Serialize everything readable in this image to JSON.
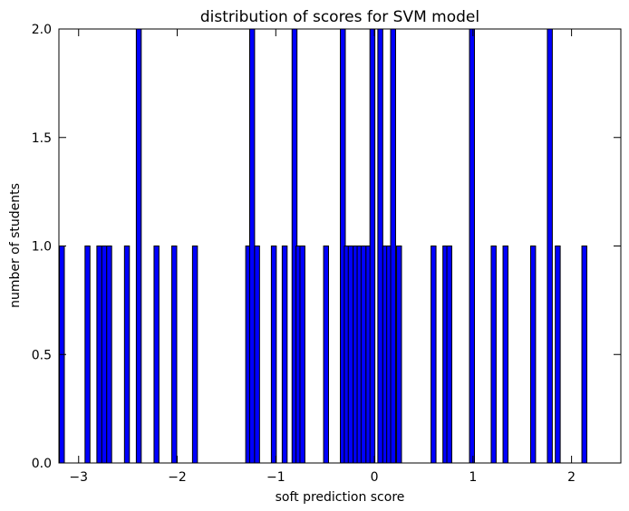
{
  "chart_data": {
    "type": "bar",
    "title": "distribution of scores for SVM model",
    "xlabel": "soft prediction score",
    "ylabel": "number of students",
    "xlim": [
      -3.2,
      2.5
    ],
    "ylim": [
      0.0,
      2.0
    ],
    "xticks": [
      -3,
      -2,
      -1,
      0,
      1,
      2
    ],
    "xtick_labels": [
      "−3",
      "−2",
      "−1",
      "0",
      "1",
      "2"
    ],
    "yticks": [
      0.0,
      0.5,
      1.0,
      1.5,
      2.0
    ],
    "ytick_labels": [
      "0.0",
      "0.5",
      "1.0",
      "1.5",
      "2.0"
    ],
    "bar_width": 0.05,
    "grid": false,
    "bar_color": "#0000ff",
    "edge_color": "#000000",
    "series": [
      {
        "x": [
          -3.17,
          -2.91,
          -2.79,
          -2.74,
          -2.69,
          -2.51,
          -2.39,
          -2.21,
          -2.03,
          -1.82,
          -1.28,
          -1.24,
          -1.19,
          -1.02,
          -0.91,
          -0.81,
          -0.77,
          -0.73,
          -0.49,
          -0.32,
          -0.28,
          -0.24,
          -0.19,
          -0.15,
          -0.11,
          -0.06,
          -0.02,
          0.06,
          0.11,
          0.15,
          0.19,
          0.25,
          0.6,
          0.72,
          0.76,
          0.99,
          1.21,
          1.33,
          1.61,
          1.78,
          1.86,
          2.13
        ],
        "values": [
          1,
          1,
          1,
          1,
          1,
          1,
          2,
          1,
          1,
          1,
          1,
          2,
          1,
          1,
          1,
          2,
          1,
          1,
          1,
          2,
          1,
          1,
          1,
          1,
          1,
          1,
          2,
          2,
          1,
          1,
          2,
          1,
          1,
          1,
          1,
          2,
          1,
          1,
          1,
          2,
          1,
          1
        ]
      }
    ]
  }
}
